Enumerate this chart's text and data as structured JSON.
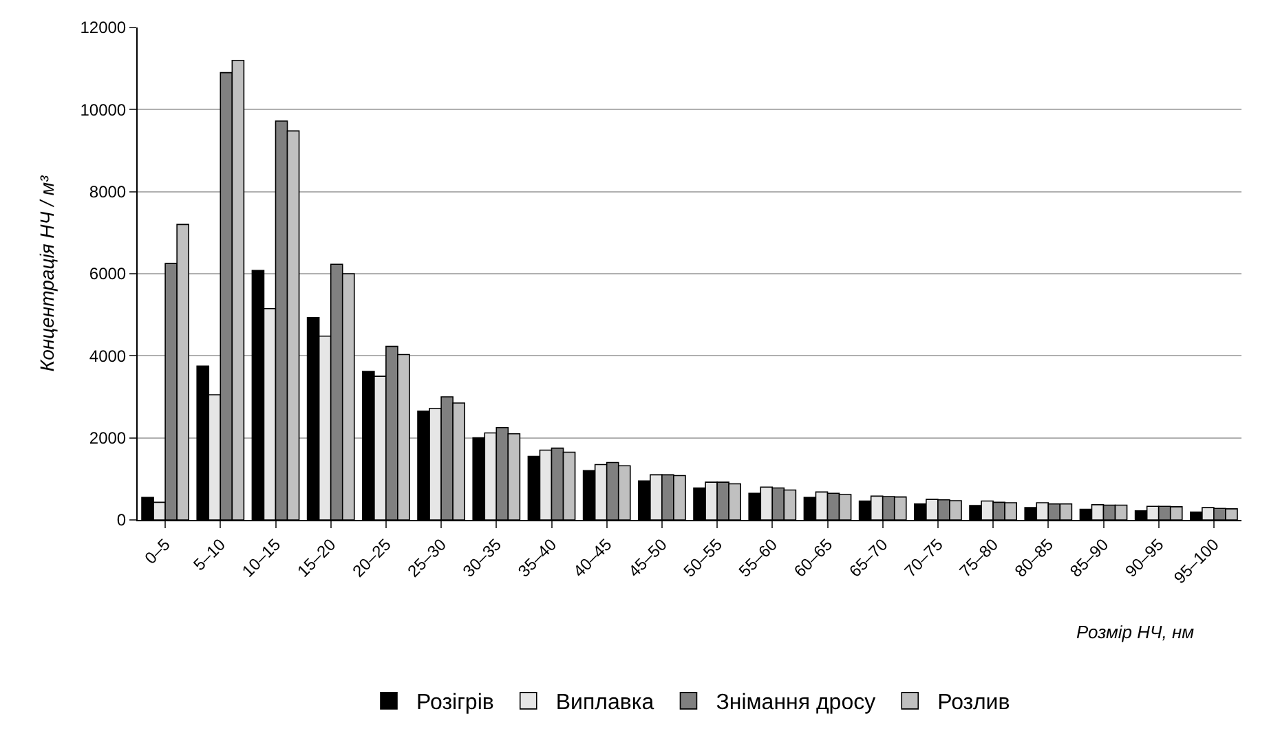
{
  "chart_data": {
    "type": "bar",
    "xlabel": "Розмір НЧ, нм",
    "ylabel": "Концентрація НЧ / м³",
    "categories": [
      "0–5",
      "5–10",
      "10–15",
      "15–20",
      "20–25",
      "25–30",
      "30–35",
      "35–40",
      "40–45",
      "45–50",
      "50–55",
      "55–60",
      "60–65",
      "65–70",
      "70–75",
      "75–80",
      "80–85",
      "85–90",
      "90–95",
      "95–100"
    ],
    "series": [
      {
        "name": "Розігрів",
        "color": "#000000",
        "values": [
          550,
          3750,
          6080,
          4930,
          3620,
          2650,
          2000,
          1550,
          1200,
          950,
          780,
          650,
          550,
          460,
          390,
          350,
          300,
          260,
          220,
          190
        ]
      },
      {
        "name": "Виплавка",
        "color": "#e6e6e6",
        "values": [
          430,
          3050,
          5150,
          4480,
          3500,
          2720,
          2120,
          1700,
          1350,
          1100,
          920,
          800,
          680,
          580,
          500,
          460,
          420,
          370,
          330,
          300
        ]
      },
      {
        "name": "Знімання дросу",
        "color": "#808080",
        "values": [
          6250,
          10900,
          9720,
          6230,
          4230,
          3000,
          2250,
          1750,
          1400,
          1100,
          920,
          780,
          650,
          570,
          490,
          430,
          390,
          360,
          330,
          280
        ]
      },
      {
        "name": "Розлив",
        "color": "#c0c0c0",
        "values": [
          7200,
          11200,
          9480,
          6000,
          4030,
          2850,
          2100,
          1650,
          1320,
          1080,
          880,
          730,
          620,
          560,
          470,
          420,
          390,
          360,
          320,
          270
        ]
      }
    ],
    "ylim": [
      0,
      12000
    ],
    "yticks": [
      0,
      2000,
      4000,
      6000,
      8000,
      10000,
      12000
    ],
    "grid": "y",
    "legend": "bottom"
  }
}
